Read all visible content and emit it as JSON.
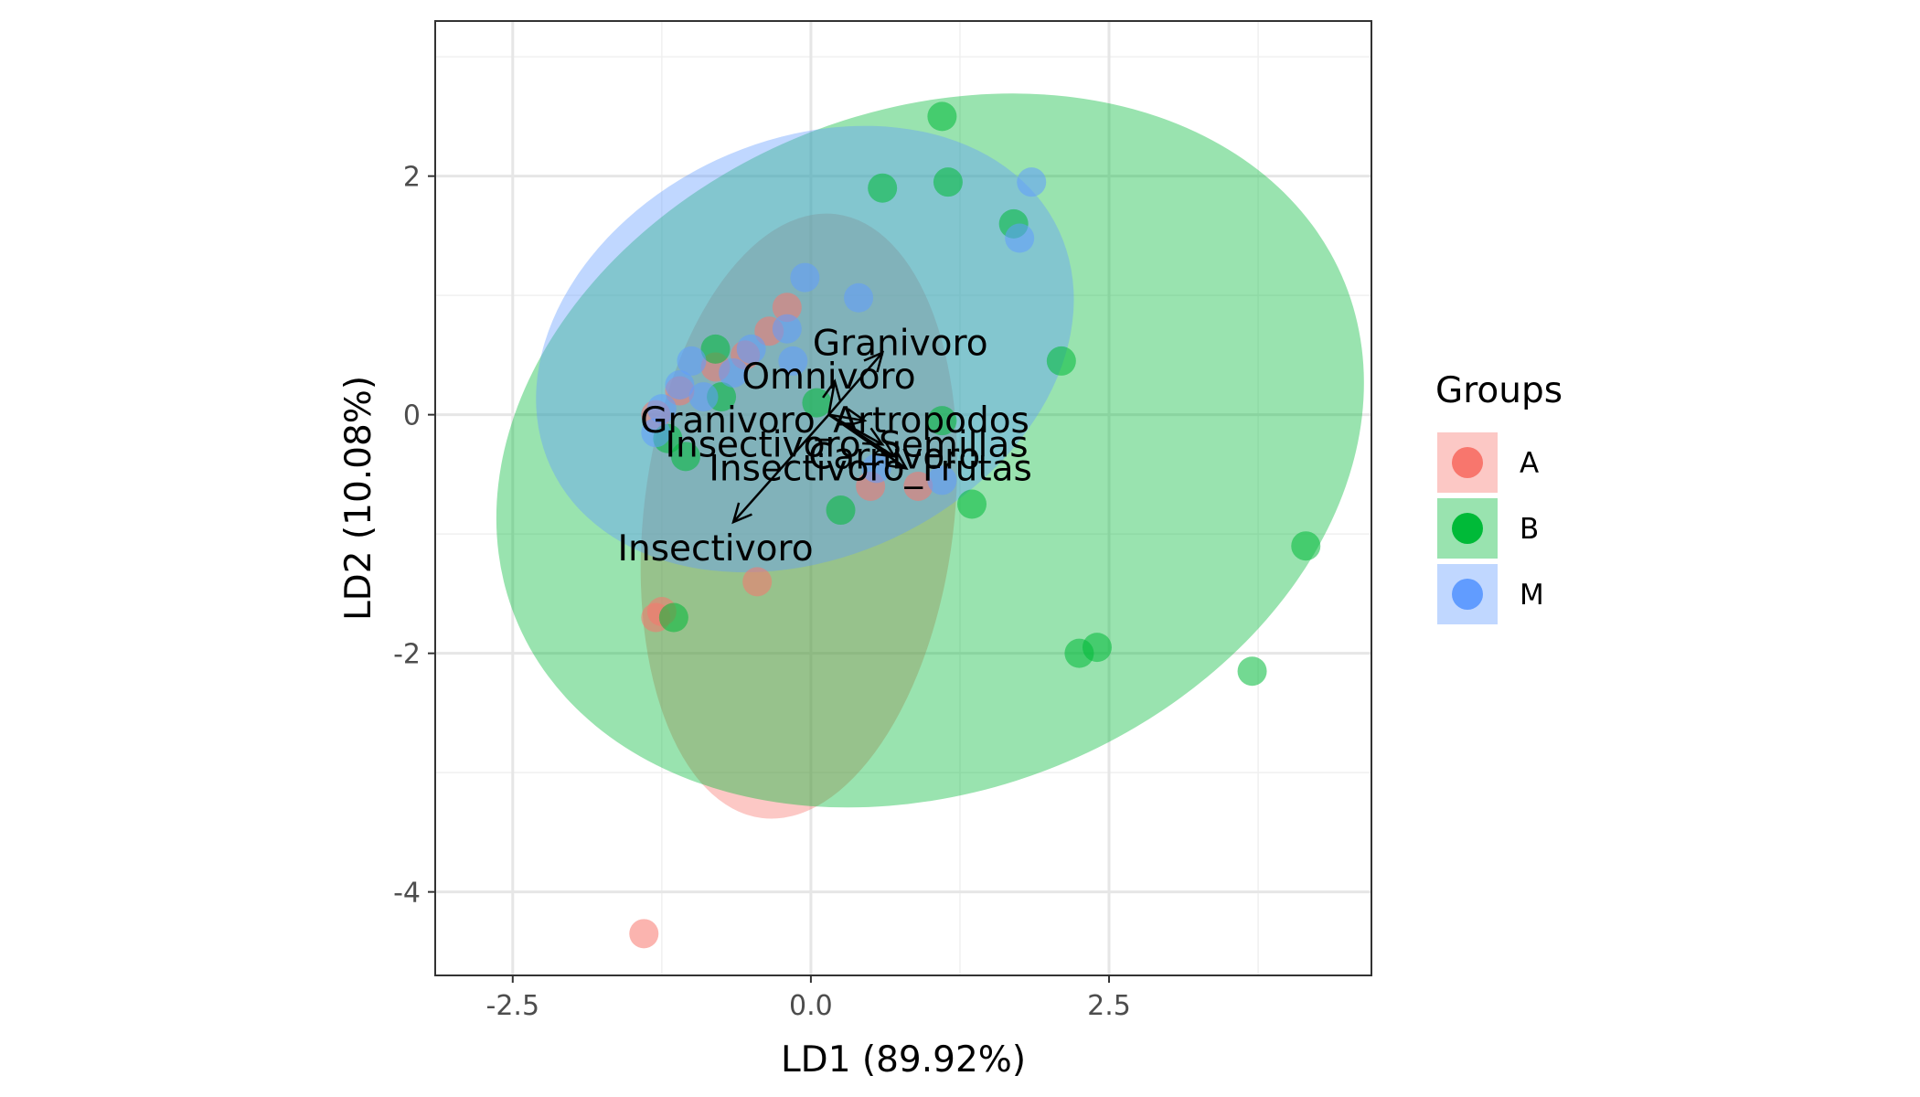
{
  "chart_data": {
    "type": "scatter",
    "title": "",
    "xlabel": "LD1 (89.92%)",
    "ylabel": "LD2 (10.08%)",
    "xlim": [
      -3.15,
      4.7
    ],
    "ylim": [
      -4.7,
      3.3
    ],
    "x_ticks": [
      -2.5,
      0.0,
      2.5
    ],
    "x_tick_labels": [
      "-2.5",
      "0.0",
      "2.5"
    ],
    "y_ticks": [
      -4,
      -2,
      0,
      2
    ],
    "y_tick_labels": [
      "-4",
      "-2",
      "0",
      "2"
    ],
    "grid": true,
    "legend": {
      "title": "Groups",
      "position": "right"
    },
    "colors": {
      "A": "#F8766D",
      "B": "#00BA38",
      "M": "#619CFF"
    },
    "series": [
      {
        "name": "A",
        "color": "#F8766D",
        "points": [
          {
            "x": -1.4,
            "y": -4.35
          },
          {
            "x": -1.3,
            "y": -1.7
          },
          {
            "x": -1.25,
            "y": -1.65
          },
          {
            "x": -0.45,
            "y": -1.4
          },
          {
            "x": 0.9,
            "y": -0.6
          },
          {
            "x": 0.5,
            "y": -0.6
          },
          {
            "x": -0.8,
            "y": 0.4
          },
          {
            "x": -1.1,
            "y": 0.2
          },
          {
            "x": -0.2,
            "y": 0.9
          },
          {
            "x": -0.35,
            "y": 0.7
          },
          {
            "x": -0.55,
            "y": 0.5
          },
          {
            "x": -1.3,
            "y": 0.0
          }
        ],
        "ellipse": {
          "cx": -0.1,
          "cy": -0.85,
          "rx": 1.3,
          "ry": 2.55,
          "angle_deg": 7
        }
      },
      {
        "name": "B",
        "color": "#00BA38",
        "points": [
          {
            "x": 1.1,
            "y": 2.5
          },
          {
            "x": 1.15,
            "y": 1.95
          },
          {
            "x": 0.6,
            "y": 1.9
          },
          {
            "x": 1.7,
            "y": 1.6
          },
          {
            "x": 2.1,
            "y": 0.45
          },
          {
            "x": 4.15,
            "y": -1.1
          },
          {
            "x": 3.7,
            "y": -2.15
          },
          {
            "x": 2.25,
            "y": -2.0
          },
          {
            "x": 2.4,
            "y": -1.95
          },
          {
            "x": 1.35,
            "y": -0.75
          },
          {
            "x": 1.1,
            "y": -0.05
          },
          {
            "x": 0.25,
            "y": -0.8
          },
          {
            "x": -1.05,
            "y": -0.35
          },
          {
            "x": -1.2,
            "y": -0.2
          },
          {
            "x": -0.8,
            "y": 0.55
          },
          {
            "x": -0.75,
            "y": 0.15
          },
          {
            "x": 0.05,
            "y": 0.1
          },
          {
            "x": -1.15,
            "y": -1.7
          }
        ],
        "ellipse": {
          "cx": 1.0,
          "cy": -0.3,
          "rx": 3.75,
          "ry": 2.85,
          "angle_deg": -22
        }
      },
      {
        "name": "M",
        "color": "#619CFF",
        "points": [
          {
            "x": 1.85,
            "y": 1.95
          },
          {
            "x": 1.75,
            "y": 1.48
          },
          {
            "x": -0.05,
            "y": 1.15
          },
          {
            "x": 0.4,
            "y": 0.98
          },
          {
            "x": -0.2,
            "y": 0.72
          },
          {
            "x": -0.5,
            "y": 0.55
          },
          {
            "x": -1.0,
            "y": 0.45
          },
          {
            "x": -0.65,
            "y": 0.35
          },
          {
            "x": -1.1,
            "y": 0.25
          },
          {
            "x": -1.25,
            "y": 0.05
          },
          {
            "x": -1.3,
            "y": -0.15
          },
          {
            "x": 1.1,
            "y": -0.55
          },
          {
            "x": 0.55,
            "y": -0.45
          },
          {
            "x": -0.9,
            "y": 0.15
          },
          {
            "x": -0.15,
            "y": 0.45
          }
        ],
        "ellipse": {
          "cx": -0.05,
          "cy": 0.55,
          "rx": 2.35,
          "ry": 1.75,
          "angle_deg": -25
        }
      }
    ],
    "arrows": [
      {
        "label": "Granivoro",
        "x": 0.6,
        "y": 0.52,
        "label_x": 0.75,
        "label_y": 0.6
      },
      {
        "label": "Omnivoro",
        "x": 0.2,
        "y": 0.28,
        "label_x": 0.15,
        "label_y": 0.32
      },
      {
        "label": "Granivoro_Artropodos",
        "x": 0.45,
        "y": -0.05,
        "label_x": 0.2,
        "label_y": -0.05
      },
      {
        "label": "Insectivoro_Semillas",
        "x": 0.6,
        "y": -0.25,
        "label_x": 0.3,
        "label_y": -0.25
      },
      {
        "label": "Carnivoro",
        "x": 0.7,
        "y": -0.35,
        "label_x": 0.7,
        "label_y": -0.35
      },
      {
        "label": "Insectivoro_Frutas",
        "x": 0.8,
        "y": -0.45,
        "label_x": 0.5,
        "label_y": -0.45
      },
      {
        "label": "Insectivoro",
        "x": -0.65,
        "y": -0.9,
        "label_x": -0.8,
        "label_y": -1.12
      }
    ]
  }
}
